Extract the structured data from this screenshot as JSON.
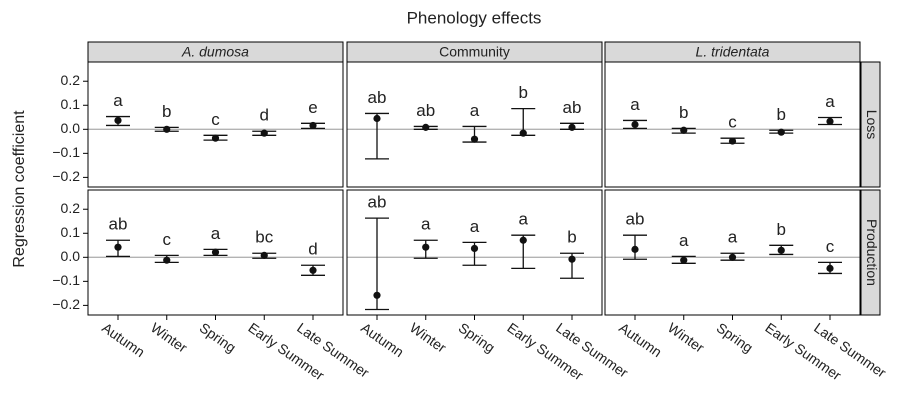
{
  "chart_data": {
    "type": "errorbar",
    "title": "Phenology effects",
    "y_label": "Regression coefficient",
    "categories": [
      "Autumn",
      "Winter",
      "Spring",
      "Early Summer",
      "Late Summer"
    ],
    "columns": [
      "A. dumosa",
      "Community",
      "L. tridentata"
    ],
    "column_italic": [
      true,
      false,
      true
    ],
    "rows": [
      "Loss",
      "Production"
    ],
    "ylim": [
      -0.24,
      0.28
    ],
    "yticks": [
      0.2,
      0.1,
      {
        "value": 0,
        "label": "0.0"
      },
      {
        "value": -0.1,
        "label": "−0.1"
      },
      {
        "value": -0.2,
        "label": "−0.2"
      }
    ],
    "color": "#111111",
    "zero_line_color": "#b3b3b3",
    "strip_color": "#d9d9d9",
    "panels": [
      [
        {
          "values": [
            0.037,
            0.0,
            -0.037,
            -0.016,
            0.016
          ],
          "lower": [
            0.016,
            -0.008,
            -0.045,
            -0.025,
            0.004
          ],
          "upper": [
            0.053,
            0.008,
            -0.025,
            -0.008,
            0.025
          ],
          "letters": [
            "a",
            "b",
            "c",
            "d",
            "e"
          ]
        },
        {
          "values": [
            0.045,
            0.008,
            -0.041,
            -0.016,
            0.008
          ],
          "lower": [
            -0.123,
            0.0,
            -0.053,
            -0.025,
            0.0
          ],
          "upper": [
            0.066,
            0.012,
            0.012,
            0.086,
            0.025
          ],
          "letters": [
            "ab",
            "ab",
            "a",
            "b",
            "ab"
          ]
        },
        {
          "values": [
            0.02,
            -0.004,
            -0.049,
            -0.012,
            0.033
          ],
          "lower": [
            0.004,
            -0.016,
            -0.058,
            -0.016,
            0.02
          ],
          "upper": [
            0.037,
            0.004,
            -0.037,
            -0.004,
            0.049
          ],
          "letters": [
            "a",
            "b",
            "c",
            "b",
            "a"
          ]
        }
      ],
      [
        {
          "values": [
            0.042,
            -0.012,
            0.021,
            0.008,
            -0.054
          ],
          "lower": [
            0.004,
            -0.021,
            0.008,
            -0.004,
            -0.075
          ],
          "upper": [
            0.071,
            0.008,
            0.033,
            0.017,
            -0.033
          ],
          "letters": [
            "ab",
            "c",
            "a",
            "bc",
            "d"
          ]
        },
        {
          "values": [
            -0.158,
            0.042,
            0.037,
            0.071,
            -0.008
          ],
          "lower": [
            -0.217,
            -0.004,
            -0.033,
            -0.046,
            -0.087
          ],
          "upper": [
            0.163,
            0.071,
            0.062,
            0.092,
            0.017
          ],
          "letters": [
            "ab",
            "a",
            "a",
            "a",
            "b"
          ]
        },
        {
          "values": [
            0.033,
            -0.012,
            0.0,
            0.029,
            -0.046
          ],
          "lower": [
            -0.008,
            -0.025,
            -0.012,
            0.012,
            -0.067
          ],
          "upper": [
            0.092,
            0.004,
            0.017,
            0.05,
            -0.021
          ],
          "letters": [
            "ab",
            "a",
            "a",
            "b",
            "c"
          ]
        }
      ]
    ]
  }
}
